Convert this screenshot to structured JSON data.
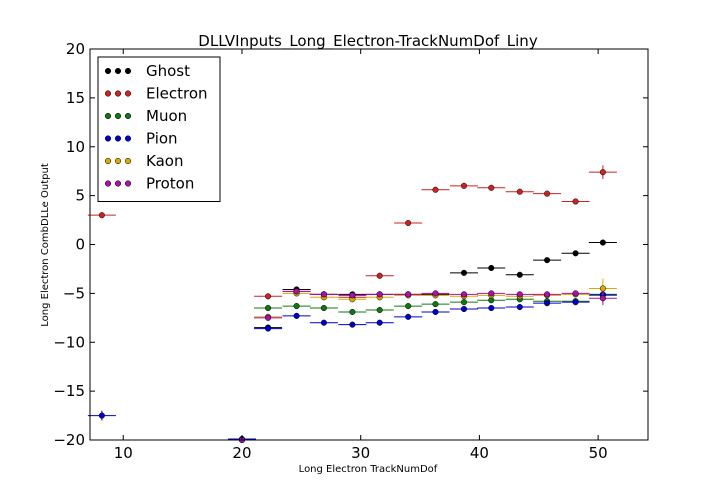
{
  "chart_data": {
    "type": "scatter",
    "title": "DLLVInputs_Long_Electron-TrackNumDof_Liny",
    "xlabel": "Long Electron TrackNumDof",
    "ylabel": "Long Electron CombDLLe Output",
    "xlim": [
      7.2,
      54.2
    ],
    "ylim": [
      -20,
      20
    ],
    "xticks": [
      10,
      20,
      30,
      40,
      50
    ],
    "yticks": [
      -20,
      -15,
      -10,
      -5,
      0,
      5,
      10,
      15,
      20
    ],
    "xerr": 1.18,
    "legend_position": "top-left",
    "series": [
      {
        "name": "Ghost",
        "color": "#000000",
        "x": [
          22.2,
          24.6,
          26.9,
          29.3,
          31.6,
          34.0,
          36.3,
          38.7,
          41.0,
          43.4,
          45.7,
          48.1,
          50.4
        ],
        "y": [
          -8.5,
          -4.6,
          -5.1,
          -5.1,
          -5.1,
          -5.1,
          -5.1,
          -2.9,
          -2.4,
          -3.1,
          -1.6,
          -0.9,
          0.2
        ],
        "yerr": [
          0.2,
          0.2,
          0.2,
          0.2,
          0.2,
          0.2,
          0.2,
          0.2,
          0.2,
          0.2,
          0.2,
          0.2,
          0.2
        ]
      },
      {
        "name": "Electron",
        "color": "#cc2222",
        "x": [
          8.2,
          20.0,
          22.2,
          24.6,
          26.9,
          29.3,
          31.6,
          34.0,
          36.3,
          38.7,
          41.0,
          43.4,
          45.7,
          48.1,
          50.4
        ],
        "y": [
          3.0,
          -20.0,
          -5.3,
          -4.8,
          -5.1,
          -5.4,
          -3.2,
          2.2,
          5.6,
          6.0,
          5.8,
          5.4,
          5.2,
          4.4,
          7.4
        ],
        "yerr": [
          0.2,
          0.2,
          0.2,
          0.2,
          0.2,
          0.2,
          0.2,
          0.2,
          0.2,
          0.2,
          0.2,
          0.2,
          0.2,
          0.2,
          0.7
        ]
      },
      {
        "name": "Muon",
        "color": "#117711",
        "x": [
          22.2,
          24.6,
          26.9,
          29.3,
          31.6,
          34.0,
          36.3,
          38.7,
          41.0,
          43.4,
          45.7,
          48.1,
          50.4
        ],
        "y": [
          -6.5,
          -6.3,
          -6.5,
          -6.9,
          -6.7,
          -6.3,
          -6.1,
          -5.9,
          -5.7,
          -5.6,
          -5.8,
          -5.8,
          -5.2
        ],
        "yerr": [
          0.2,
          0.2,
          0.2,
          0.2,
          0.2,
          0.2,
          0.2,
          0.2,
          0.2,
          0.2,
          0.2,
          0.2,
          0.3
        ]
      },
      {
        "name": "Pion",
        "color": "#0000cc",
        "x": [
          8.2,
          20.0,
          22.2,
          24.6,
          26.9,
          29.3,
          31.6,
          34.0,
          36.3,
          38.7,
          41.0,
          43.4,
          45.7,
          48.1,
          50.4
        ],
        "y": [
          -17.5,
          -19.9,
          -8.6,
          -7.3,
          -8.0,
          -8.2,
          -8.0,
          -7.4,
          -6.9,
          -6.6,
          -6.5,
          -6.4,
          -6.0,
          -5.9,
          -5.1
        ],
        "yerr": [
          0.5,
          0.2,
          0.2,
          0.2,
          0.2,
          0.2,
          0.2,
          0.2,
          0.2,
          0.2,
          0.2,
          0.2,
          0.2,
          0.2,
          0.4
        ]
      },
      {
        "name": "Kaon",
        "color": "#ddaa00",
        "x": [
          22.2,
          24.6,
          26.9,
          29.3,
          31.6,
          34.0,
          36.3,
          38.7,
          41.0,
          43.4,
          45.7,
          48.1,
          50.4
        ],
        "y": [
          -7.4,
          -5.0,
          -5.4,
          -5.6,
          -5.4,
          -5.2,
          -5.2,
          -5.3,
          -5.2,
          -5.3,
          -5.2,
          -5.1,
          -4.5
        ],
        "yerr": [
          0.2,
          0.2,
          0.2,
          0.2,
          0.2,
          0.2,
          0.2,
          0.2,
          0.2,
          0.2,
          0.2,
          0.2,
          1.0
        ]
      },
      {
        "name": "Proton",
        "color": "#aa11aa",
        "x": [
          20.0,
          22.2,
          24.6,
          26.9,
          29.3,
          31.6,
          34.0,
          36.3,
          38.7,
          41.0,
          43.4,
          45.7,
          48.1,
          50.4
        ],
        "y": [
          -20.0,
          -7.5,
          -4.8,
          -5.1,
          -5.2,
          -5.1,
          -5.1,
          -5.0,
          -5.1,
          -5.0,
          -5.1,
          -5.1,
          -5.0,
          -5.5
        ],
        "yerr": [
          0.2,
          0.2,
          0.2,
          0.2,
          0.2,
          0.2,
          0.2,
          0.2,
          0.2,
          0.2,
          0.2,
          0.2,
          0.2,
          0.7
        ]
      }
    ]
  }
}
